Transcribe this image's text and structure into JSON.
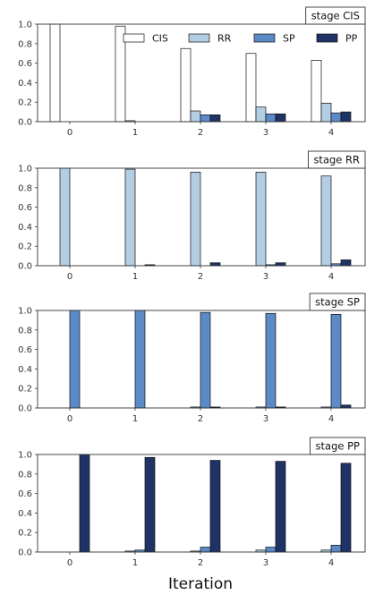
{
  "chart_data": [
    {
      "type": "bar",
      "title": "stage CIS",
      "categories": [
        "0",
        "1",
        "2",
        "3",
        "4"
      ],
      "series": [
        {
          "name": "CIS",
          "values": [
            1.0,
            0.98,
            0.75,
            0.7,
            0.63
          ]
        },
        {
          "name": "RR",
          "values": [
            0.0,
            0.01,
            0.11,
            0.15,
            0.19
          ]
        },
        {
          "name": "SP",
          "values": [
            0.0,
            0.0,
            0.07,
            0.08,
            0.09
          ]
        },
        {
          "name": "PP",
          "values": [
            0.0,
            0.0,
            0.07,
            0.08,
            0.1
          ]
        }
      ],
      "ylim": [
        0,
        1.0
      ],
      "yticks": [
        "0.0",
        "0.2",
        "0.4",
        "0.6",
        "0.8",
        "1.0"
      ],
      "legend": "top-right"
    },
    {
      "type": "bar",
      "title": "stage RR",
      "categories": [
        "0",
        "1",
        "2",
        "3",
        "4"
      ],
      "series": [
        {
          "name": "CIS",
          "values": [
            0.0,
            0.0,
            0.0,
            0.0,
            0.0
          ]
        },
        {
          "name": "RR",
          "values": [
            1.0,
            0.99,
            0.96,
            0.96,
            0.92
          ]
        },
        {
          "name": "SP",
          "values": [
            0.0,
            0.0,
            0.0,
            0.01,
            0.02
          ]
        },
        {
          "name": "PP",
          "values": [
            0.0,
            0.01,
            0.03,
            0.03,
            0.06
          ]
        }
      ],
      "ylim": [
        0,
        1.0
      ],
      "yticks": [
        "0.0",
        "0.2",
        "0.4",
        "0.6",
        "0.8",
        "1.0"
      ]
    },
    {
      "type": "bar",
      "title": "stage SP",
      "categories": [
        "0",
        "1",
        "2",
        "3",
        "4"
      ],
      "series": [
        {
          "name": "CIS",
          "values": [
            0.0,
            0.0,
            0.0,
            0.0,
            0.0
          ]
        },
        {
          "name": "RR",
          "values": [
            0.0,
            0.0,
            0.01,
            0.01,
            0.01
          ]
        },
        {
          "name": "SP",
          "values": [
            1.0,
            1.0,
            0.98,
            0.97,
            0.96
          ]
        },
        {
          "name": "PP",
          "values": [
            0.0,
            0.0,
            0.01,
            0.01,
            0.03
          ]
        }
      ],
      "ylim": [
        0,
        1.0
      ],
      "yticks": [
        "0.0",
        "0.2",
        "0.4",
        "0.6",
        "0.8",
        "1.0"
      ]
    },
    {
      "type": "bar",
      "title": "stage PP",
      "categories": [
        "0",
        "1",
        "2",
        "3",
        "4"
      ],
      "series": [
        {
          "name": "CIS",
          "values": [
            0.0,
            0.0,
            0.0,
            0.0,
            0.0
          ]
        },
        {
          "name": "RR",
          "values": [
            0.0,
            0.01,
            0.01,
            0.02,
            0.02
          ]
        },
        {
          "name": "SP",
          "values": [
            0.0,
            0.02,
            0.05,
            0.05,
            0.07
          ]
        },
        {
          "name": "PP",
          "values": [
            1.0,
            0.97,
            0.94,
            0.93,
            0.91
          ]
        }
      ],
      "ylim": [
        0,
        1.0
      ],
      "yticks": [
        "0.0",
        "0.2",
        "0.4",
        "0.6",
        "0.8",
        "1.0"
      ]
    }
  ],
  "xlabel": "Iteration",
  "colors": {
    "CIS": "#ffffff",
    "RR": "#b3cde3",
    "SP": "#5b8ac6",
    "PP": "#1f3366"
  }
}
